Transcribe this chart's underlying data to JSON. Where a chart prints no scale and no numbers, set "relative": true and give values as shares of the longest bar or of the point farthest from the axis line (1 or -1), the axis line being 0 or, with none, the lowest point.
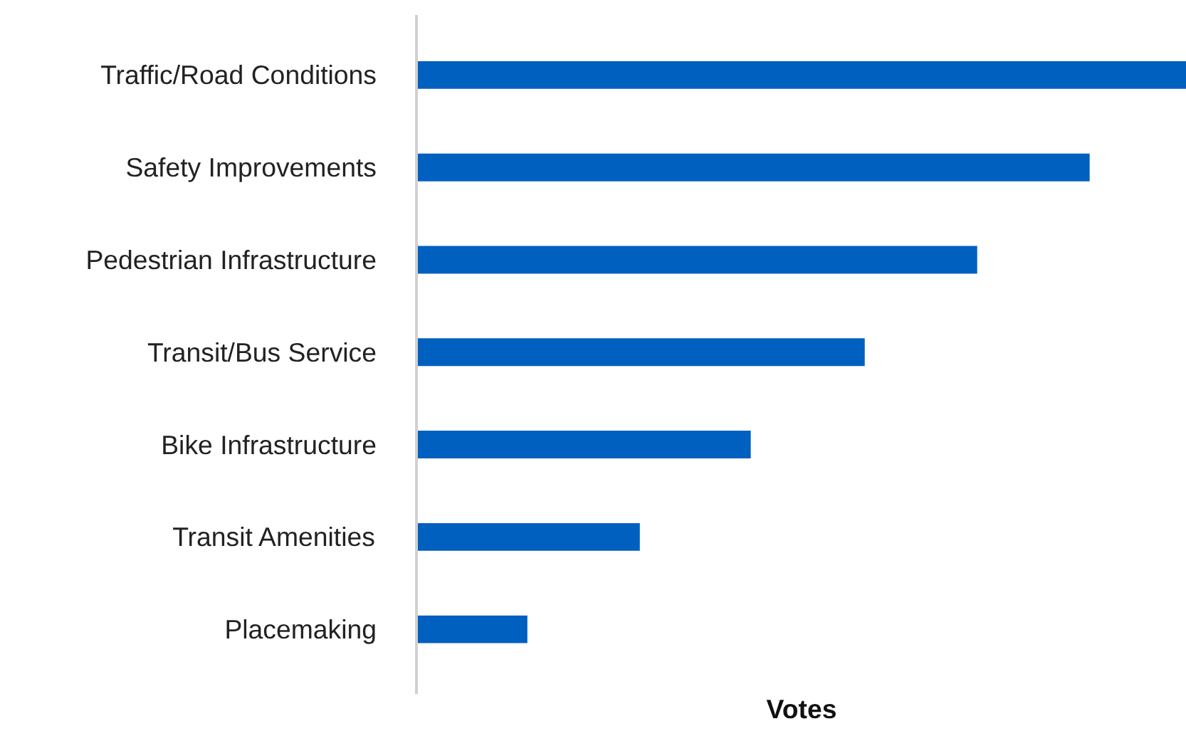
{
  "chart_data": {
    "type": "bar",
    "orientation": "horizontal",
    "relative": true,
    "xlabel": "Votes",
    "categories": [
      "Traffic/Road Conditions",
      "Safety Improvements",
      "Pedestrian Infrastructure",
      "Transit/Bus Service",
      "Bike Infrastructure",
      "Transit Amenities",
      "Placemaking"
    ],
    "values": [
      1,
      0.874,
      0.728,
      0.582,
      0.434,
      0.29,
      0.144
    ],
    "color": "#0060bf",
    "grid": false
  }
}
